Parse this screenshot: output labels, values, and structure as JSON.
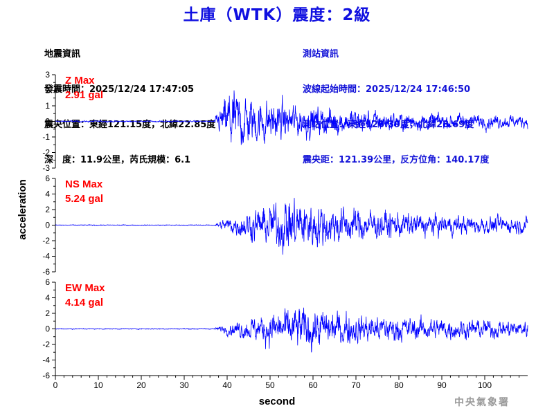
{
  "title": "土庫（WTK）震度：2級",
  "earthquake_info": {
    "heading": "地震資訊",
    "origin_time": "發震時間：2025/12/24 17:47:05",
    "epicenter": "震央位置：東經121.15度，北緯22.85度",
    "depth_magnitude": "深　度：11.9公里，芮氏規模：6.1"
  },
  "station_info": {
    "heading": "測站資訊",
    "wave_start": "波線起始時間：2025/12/24 17:46:50",
    "location": "測站位置：東經120.39度，北緯23.69度",
    "distance": "震央距：121.39公里，反方位角：140.17度"
  },
  "watermark": "中央氣象署",
  "colors": {
    "trace": "#0000ff",
    "max_label": "#ff0000",
    "title": "#1010e0"
  },
  "chart_data": [
    {
      "type": "line",
      "component": "Z",
      "max_label": "Z Max",
      "max_value": "2.91 gal",
      "ylim": [
        -3,
        3
      ],
      "yticks": [
        "3",
        "2",
        "1",
        "0",
        "-1",
        "-2",
        "-3"
      ],
      "xlim": [
        0,
        110
      ],
      "envelope": {
        "arrival_s": 37,
        "noise": 0.05,
        "peak_time_s": 41,
        "peak": 2.91,
        "tail": 0.35
      }
    },
    {
      "type": "line",
      "component": "NS",
      "max_label": "NS Max",
      "max_value": "5.24 gal",
      "ylim": [
        -6,
        6
      ],
      "yticks": [
        "6",
        "4",
        "2",
        "0",
        "-2",
        "-4",
        "-6"
      ],
      "xlim": [
        0,
        110
      ],
      "envelope": {
        "arrival_s": 37,
        "noise": 0.06,
        "peak_time_s": 56,
        "peak": 5.24,
        "tail": 0.8
      }
    },
    {
      "type": "line",
      "component": "EW",
      "max_label": "EW Max",
      "max_value": "4.14 gal",
      "ylim": [
        -6,
        6
      ],
      "yticks": [
        "6",
        "4",
        "2",
        "0",
        "-2",
        "-4",
        "-6"
      ],
      "xlim": [
        0,
        110
      ],
      "envelope": {
        "arrival_s": 37,
        "noise": 0.06,
        "peak_time_s": 58,
        "peak": 4.14,
        "tail": 1.0
      }
    }
  ],
  "x_axis": {
    "label": "second",
    "ticks": [
      "0",
      "10",
      "20",
      "30",
      "40",
      "50",
      "60",
      "70",
      "80",
      "90",
      "100"
    ]
  },
  "y_axis": {
    "label": "acceleration"
  }
}
